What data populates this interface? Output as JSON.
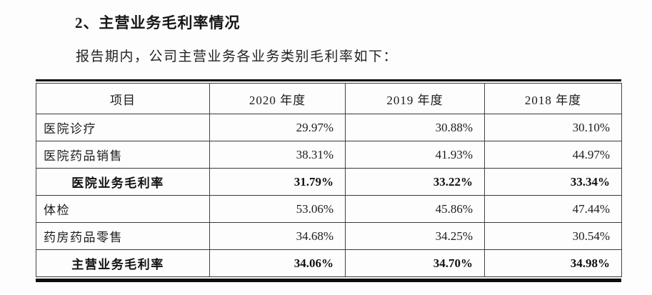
{
  "page": {
    "heading": "2、主营业务毛利率情况",
    "intro": "报告期内，公司主营业务各业务类别毛利率如下："
  },
  "table": {
    "columns": [
      "项目",
      "2020 年度",
      "2019 年度",
      "2018 年度"
    ],
    "rows": [
      {
        "label": "医院诊疗",
        "values": [
          "29.97%",
          "30.88%",
          "30.10%"
        ],
        "emphasis": false
      },
      {
        "label": "医院药品销售",
        "values": [
          "38.31%",
          "41.93%",
          "44.97%"
        ],
        "emphasis": false
      },
      {
        "label": "医院业务毛利率",
        "values": [
          "31.79%",
          "33.22%",
          "33.34%"
        ],
        "emphasis": true
      },
      {
        "label": "体检",
        "values": [
          "53.06%",
          "45.86%",
          "47.44%"
        ],
        "emphasis": false
      },
      {
        "label": "药房药品零售",
        "values": [
          "34.68%",
          "34.25%",
          "30.54%"
        ],
        "emphasis": false
      },
      {
        "label": "主营业务毛利率",
        "values": [
          "34.06%",
          "34.70%",
          "34.98%"
        ],
        "emphasis": true
      }
    ]
  },
  "colors": {
    "text": "#1c1c1c",
    "table_border": "#3a3a3a",
    "heavy_rule": "#0c0c0c",
    "background": "#fdfdfd"
  }
}
